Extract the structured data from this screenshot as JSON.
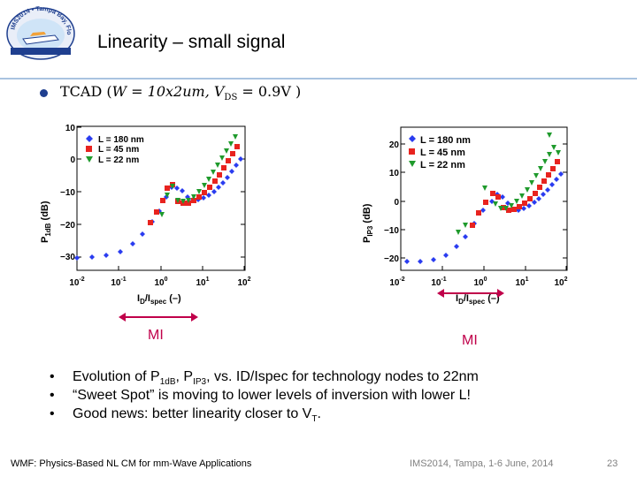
{
  "header": {
    "title": "Linearity – small signal",
    "logo_ring_text": "IMS2014 • Tampa Bay, Florida"
  },
  "tcad": {
    "prefix": "TCAD (",
    "w_expr": "W = 10x2um, ",
    "v_sym": "V",
    "v_sub": "DS",
    "v_rest": " = 0.9V )"
  },
  "plots": [
    {
      "ylabel_main": "P",
      "ylabel_sub": "1dB",
      "ylabel_unit": " (dB)",
      "xlabel_main": "I",
      "xlabel_sub1": "D",
      "xlabel_mid": "/I",
      "xlabel_sub2": "spec",
      "xlabel_unit": " (–)",
      "yticks": [
        "−30",
        "−20",
        "−10",
        "0",
        "10"
      ],
      "xticks": [
        {
          "base": "10",
          "exp": "-2"
        },
        {
          "base": "10",
          "exp": "-1"
        },
        {
          "base": "10",
          "exp": "0"
        },
        {
          "base": "10",
          "exp": "1"
        },
        {
          "base": "10",
          "exp": "2"
        }
      ],
      "legend": [
        "L = 180 nm",
        "L = 45 nm",
        "L = 22 nm"
      ]
    },
    {
      "ylabel_main": "P",
      "ylabel_sub": "IP3",
      "ylabel_unit": " (dB)",
      "xlabel_main": "I",
      "xlabel_sub1": "D",
      "xlabel_mid": "/I",
      "xlabel_sub2": "spec",
      "xlabel_unit": " (–)",
      "yticks": [
        "−20",
        "−10",
        "0",
        "10",
        "20"
      ],
      "xticks": [
        {
          "base": "10",
          "exp": "-2"
        },
        {
          "base": "10",
          "exp": "-1"
        },
        {
          "base": "10",
          "exp": "0"
        },
        {
          "base": "10",
          "exp": "1"
        },
        {
          "base": "10",
          "exp": "2"
        }
      ],
      "legend": [
        "L = 180 nm",
        "L = 45 nm",
        "L = 22 nm"
      ]
    }
  ],
  "series_colors": [
    "#2a3cf0",
    "#e8231f",
    "#1f9a2c"
  ],
  "accent_color": "#c0004a",
  "mi_labels": [
    "MI",
    "MI"
  ],
  "bullets": [
    {
      "marker": "•",
      "t1": "Evolution of P",
      "s1": "1dB",
      "t2": ", P",
      "s2": "IP3",
      "t3": ", vs. ID/Ispec for technology nodes to 22nm"
    },
    {
      "marker": "•",
      "text": "“Sweet Spot” is moving to lower levels of inversion with lower L!"
    },
    {
      "marker": "•",
      "t1": "Good news: better linearity closer to V",
      "s1": "T",
      "t2": "."
    }
  ],
  "footer": {
    "left": "WMF: Physics-Based NL CM for mm-Wave Applications",
    "center": "IMS2014, Tampa, 1-6 June, 2014",
    "page": "23"
  }
}
